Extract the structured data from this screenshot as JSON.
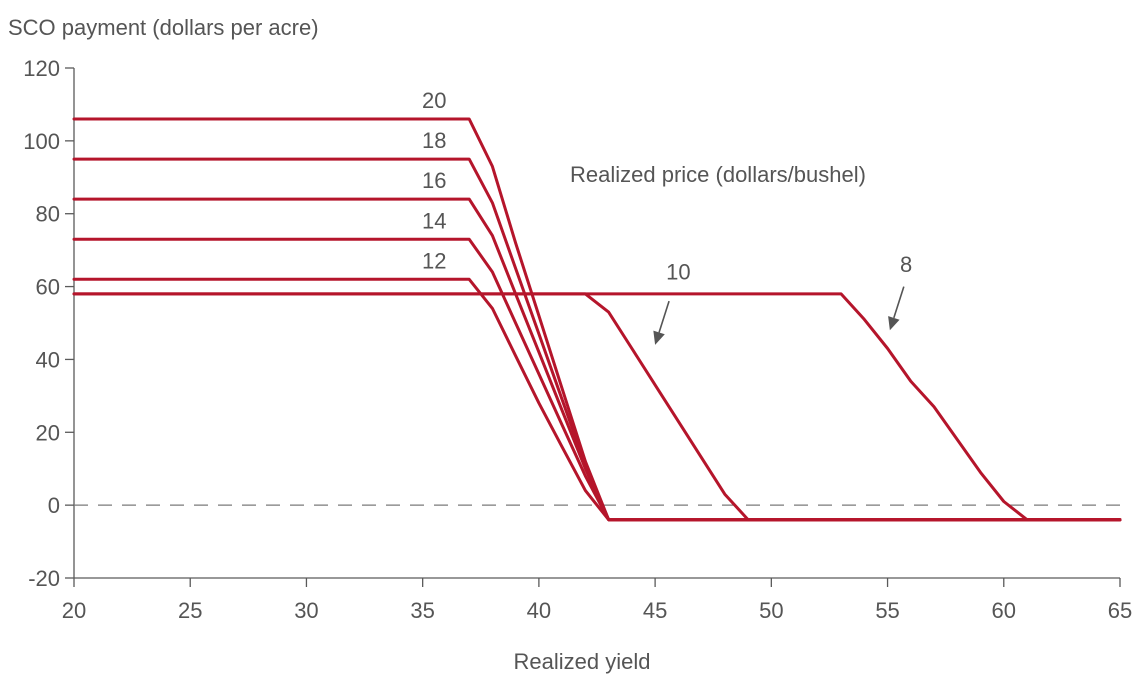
{
  "chart_data": {
    "type": "line",
    "ylabel": "SCO payment (dollars per acre)",
    "xlabel": "Realized yield",
    "annotation": "Realized price (dollars/bushel)",
    "xlim": [
      20,
      65
    ],
    "ylim": [
      -20,
      120
    ],
    "xticks": [
      20,
      25,
      30,
      35,
      40,
      45,
      50,
      55,
      60,
      65
    ],
    "yticks": [
      -20,
      0,
      20,
      40,
      60,
      80,
      100,
      120
    ],
    "reference_line": {
      "y": 0,
      "style": "dashed"
    },
    "grid": false,
    "line_color": "#b5152b",
    "series": [
      {
        "name": "20",
        "points": [
          [
            20,
            106
          ],
          [
            37,
            106
          ],
          [
            38,
            93
          ],
          [
            39,
            72
          ],
          [
            40,
            52
          ],
          [
            41,
            32
          ],
          [
            42,
            12
          ],
          [
            43,
            -4
          ],
          [
            65,
            -4
          ]
        ]
      },
      {
        "name": "18",
        "points": [
          [
            20,
            95
          ],
          [
            37,
            95
          ],
          [
            38,
            83
          ],
          [
            39,
            65
          ],
          [
            40,
            47
          ],
          [
            41,
            29
          ],
          [
            42,
            11
          ],
          [
            43,
            -4
          ],
          [
            65,
            -4
          ]
        ]
      },
      {
        "name": "16",
        "points": [
          [
            20,
            84
          ],
          [
            37,
            84
          ],
          [
            38,
            74
          ],
          [
            39,
            58
          ],
          [
            40,
            42
          ],
          [
            41,
            26
          ],
          [
            42,
            10
          ],
          [
            43,
            -4
          ],
          [
            65,
            -4
          ]
        ]
      },
      {
        "name": "14",
        "points": [
          [
            20,
            73
          ],
          [
            37,
            73
          ],
          [
            38,
            64
          ],
          [
            39,
            50
          ],
          [
            40,
            36
          ],
          [
            41,
            22
          ],
          [
            42,
            8
          ],
          [
            43,
            -4
          ],
          [
            65,
            -4
          ]
        ]
      },
      {
        "name": "12",
        "points": [
          [
            20,
            62
          ],
          [
            37,
            62
          ],
          [
            38,
            54
          ],
          [
            39,
            41
          ],
          [
            40,
            28
          ],
          [
            41,
            16
          ],
          [
            42,
            4
          ],
          [
            43,
            -4
          ],
          [
            65,
            -4
          ]
        ]
      },
      {
        "name": "10",
        "points": [
          [
            20,
            58
          ],
          [
            42,
            58
          ],
          [
            43,
            53
          ],
          [
            44,
            43
          ],
          [
            45,
            33
          ],
          [
            46,
            23
          ],
          [
            47,
            13
          ],
          [
            48,
            3
          ],
          [
            49,
            -4
          ],
          [
            65,
            -4
          ]
        ]
      },
      {
        "name": "8",
        "points": [
          [
            20,
            58
          ],
          [
            53,
            58
          ],
          [
            54,
            51
          ],
          [
            55,
            43
          ],
          [
            56,
            34
          ],
          [
            57,
            27
          ],
          [
            58,
            18
          ],
          [
            59,
            9
          ],
          [
            60,
            1
          ],
          [
            61,
            -4
          ],
          [
            65,
            -4
          ]
        ]
      }
    ],
    "labels": [
      {
        "text": "20",
        "x": 35.5,
        "y": 109
      },
      {
        "text": "18",
        "x": 35.5,
        "y": 98
      },
      {
        "text": "16",
        "x": 35.5,
        "y": 87
      },
      {
        "text": "14",
        "x": 35.5,
        "y": 76
      },
      {
        "text": "12",
        "x": 35.5,
        "y": 65
      },
      {
        "text": "10",
        "x": 46.0,
        "y": 62
      },
      {
        "text": "8",
        "x": 55.8,
        "y": 64
      }
    ],
    "arrows": [
      {
        "label": "10",
        "from": [
          45.6,
          56
        ],
        "to": [
          45.0,
          44
        ]
      },
      {
        "label": "8",
        "from": [
          55.7,
          60
        ],
        "to": [
          55.1,
          48
        ]
      }
    ]
  }
}
